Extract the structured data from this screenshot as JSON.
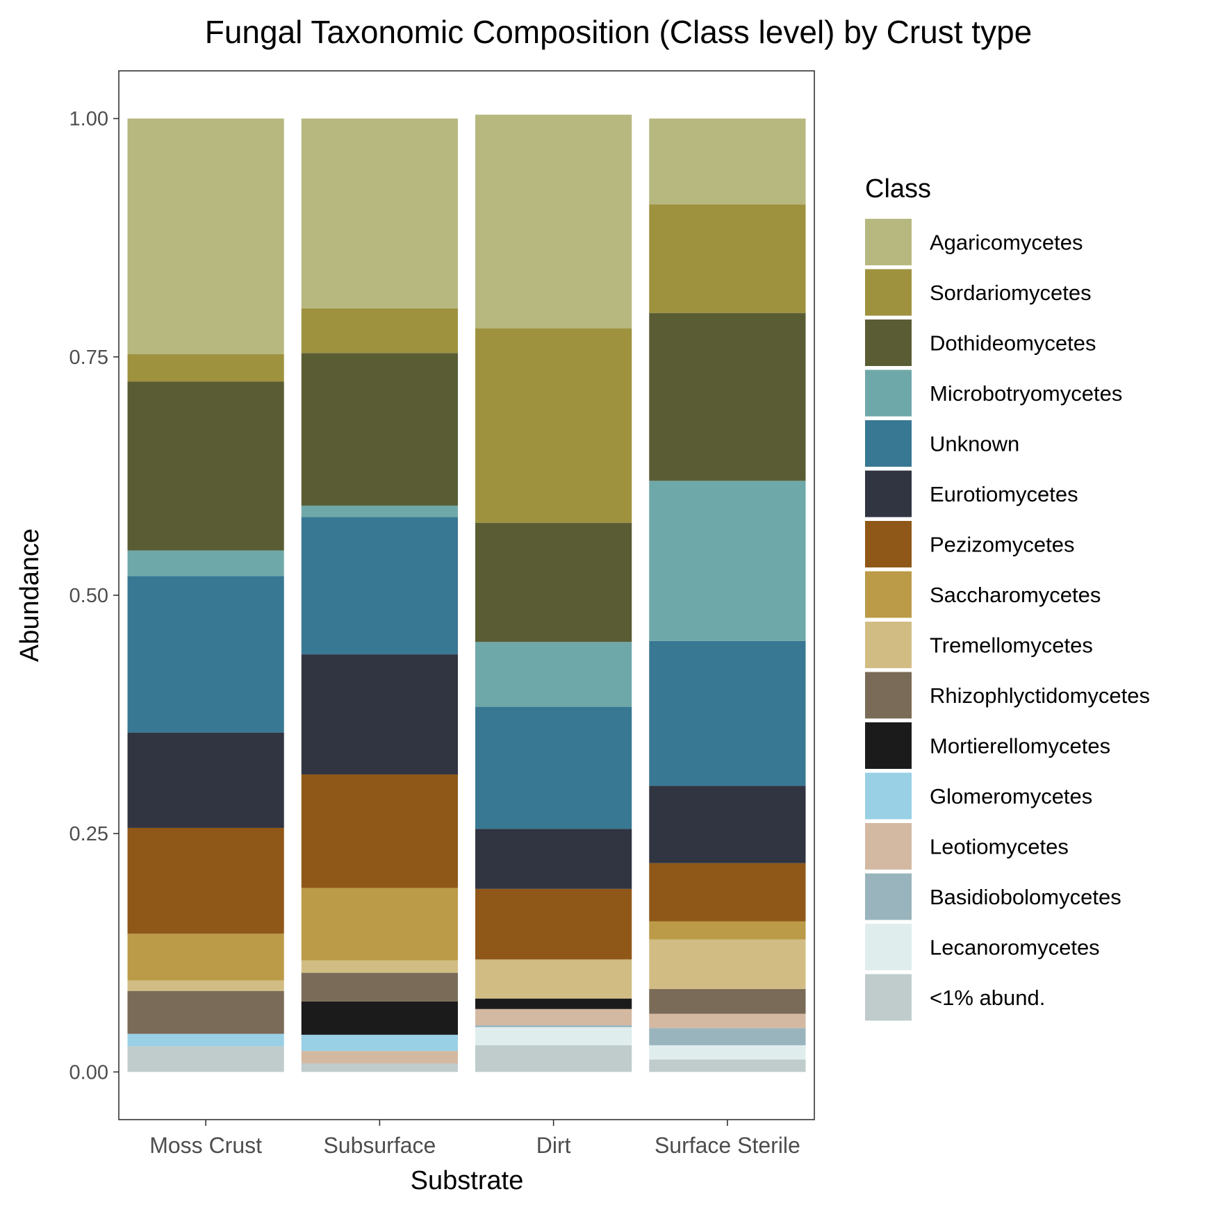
{
  "chart_data": {
    "type": "bar",
    "stacked": true,
    "normalized": true,
    "title": "Fungal Taxonomic Composition (Class level) by Crust type",
    "xlabel": "Substrate",
    "ylabel": "Abundance",
    "ylim": [
      -0.05,
      1.05
    ],
    "yticks": [
      0,
      0.25,
      0.5,
      0.75,
      1.0
    ],
    "ytick_labels": [
      "0.00",
      "0.25",
      "0.50",
      "0.75",
      "1.00"
    ],
    "grid": false,
    "legend_position": "right",
    "legend_title": "Class",
    "categories": [
      "Moss Crust",
      "Subsurface",
      "Dirt",
      "Surface Sterile"
    ],
    "series": [
      {
        "name": "<1% abund.",
        "color": "#C0CCCC",
        "values": [
          0.027,
          0.009,
          0.028,
          0.013
        ]
      },
      {
        "name": "Lecanoromycetes",
        "color": "#E0EDED",
        "values": [
          0.0,
          0.0,
          0.019,
          0.015
        ]
      },
      {
        "name": "Basidiobolomycetes",
        "color": "#99B4BC",
        "values": [
          0.0,
          0.0,
          0.002,
          0.018
        ]
      },
      {
        "name": "Leotiomycetes",
        "color": "#D4B9A2",
        "values": [
          0.0,
          0.013,
          0.017,
          0.015
        ]
      },
      {
        "name": "Glomeromycetes",
        "color": "#99D0E5",
        "values": [
          0.013,
          0.017,
          0.0,
          0.0
        ]
      },
      {
        "name": "Mortierellomycetes",
        "color": "#1B1B1B",
        "values": [
          0.0,
          0.035,
          0.011,
          0.0
        ]
      },
      {
        "name": "Rhizophlyctidomycetes",
        "color": "#7A6B58",
        "values": [
          0.045,
          0.03,
          0.0,
          0.026
        ]
      },
      {
        "name": "Tremellomycetes",
        "color": "#D1BD84",
        "values": [
          0.011,
          0.013,
          0.041,
          0.052
        ]
      },
      {
        "name": "Saccharomycetes",
        "color": "#BC9B48",
        "values": [
          0.049,
          0.076,
          0.0,
          0.019
        ]
      },
      {
        "name": "Pezizomycetes",
        "color": "#8F5818",
        "values": [
          0.111,
          0.119,
          0.074,
          0.061
        ]
      },
      {
        "name": "Eurotiomycetes",
        "color": "#313441",
        "values": [
          0.1,
          0.126,
          0.063,
          0.081
        ]
      },
      {
        "name": "Unknown",
        "color": "#387893",
        "values": [
          0.164,
          0.144,
          0.128,
          0.152
        ]
      },
      {
        "name": "Microbotryomycetes",
        "color": "#6FA8A9",
        "values": [
          0.027,
          0.012,
          0.068,
          0.168
        ]
      },
      {
        "name": "Dothideomycetes",
        "color": "#5A5D34",
        "values": [
          0.177,
          0.16,
          0.125,
          0.176
        ]
      },
      {
        "name": "Sordariomycetes",
        "color": "#9E923F",
        "values": [
          0.029,
          0.047,
          0.204,
          0.114
        ]
      },
      {
        "name": "Agaricomycetes",
        "color": "#B6B87F",
        "values": [
          0.247,
          0.199,
          0.224,
          0.09
        ]
      }
    ],
    "legend_order": [
      "Agaricomycetes",
      "Sordariomycetes",
      "Dothideomycetes",
      "Microbotryomycetes",
      "Unknown",
      "Eurotiomycetes",
      "Pezizomycetes",
      "Saccharomycetes",
      "Tremellomycetes",
      "Rhizophlyctidomycetes",
      "Mortierellomycetes",
      "Glomeromycetes",
      "Leotiomycetes",
      "Basidiobolomycetes",
      "Lecanoromycetes",
      "<1% abund."
    ]
  }
}
